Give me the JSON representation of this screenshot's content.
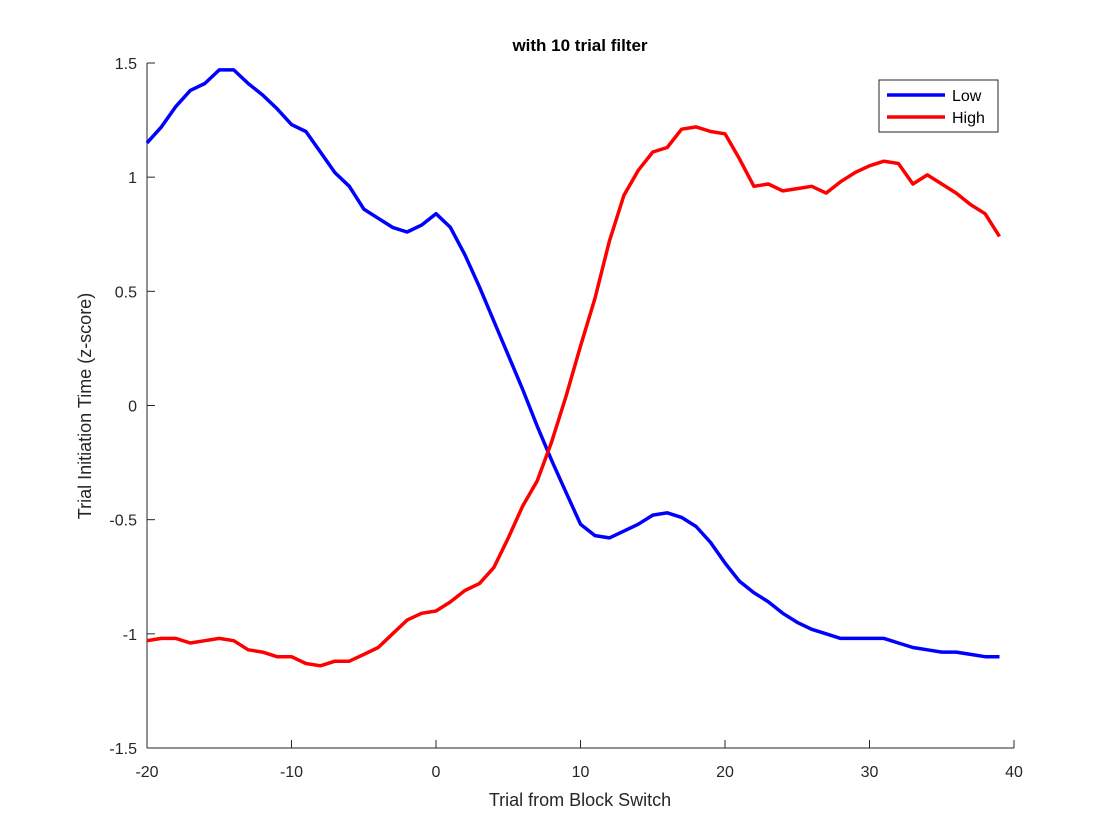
{
  "chart_data": {
    "type": "line",
    "title": "with 10 trial filter",
    "xlabel": "Trial from Block Switch",
    "ylabel": "Trial Initiation Time (z-score)",
    "xlim": [
      -20,
      40
    ],
    "ylim": [
      -1.5,
      1.5
    ],
    "xticks": [
      -20,
      -10,
      0,
      10,
      20,
      30,
      40
    ],
    "xtick_labels": [
      "-20",
      "-10",
      "0",
      "10",
      "20",
      "30",
      "40"
    ],
    "yticks": [
      -1.5,
      -1,
      -0.5,
      0,
      0.5,
      1,
      1.5
    ],
    "ytick_labels": [
      "-1.5",
      "-1",
      "-0.5",
      "0",
      "0.5",
      "1",
      "1.5"
    ],
    "grid": false,
    "legend_position": "top-right",
    "x": [
      -20,
      -19,
      -18,
      -17,
      -16,
      -15,
      -14,
      -13,
      -12,
      -11,
      -10,
      -9,
      -8,
      -7,
      -6,
      -5,
      -4,
      -3,
      -2,
      -1,
      0,
      1,
      2,
      3,
      4,
      5,
      6,
      7,
      8,
      9,
      10,
      11,
      12,
      13,
      14,
      15,
      16,
      17,
      18,
      19,
      20,
      21,
      22,
      23,
      24,
      25,
      26,
      27,
      28,
      29,
      30,
      31,
      32,
      33,
      34,
      35,
      36,
      37,
      38,
      39
    ],
    "series": [
      {
        "name": "Low",
        "color": "#0000ff",
        "values": [
          1.15,
          1.22,
          1.31,
          1.38,
          1.41,
          1.47,
          1.47,
          1.41,
          1.36,
          1.3,
          1.23,
          1.2,
          1.11,
          1.02,
          0.96,
          0.86,
          0.82,
          0.78,
          0.76,
          0.79,
          0.84,
          0.78,
          0.66,
          0.52,
          0.37,
          0.22,
          0.07,
          -0.09,
          -0.24,
          -0.38,
          -0.52,
          -0.57,
          -0.58,
          -0.55,
          -0.52,
          -0.48,
          -0.47,
          -0.49,
          -0.53,
          -0.6,
          -0.69,
          -0.77,
          -0.82,
          -0.86,
          -0.91,
          -0.95,
          -0.98,
          -1.0,
          -1.02,
          -1.02,
          -1.02,
          -1.02,
          -1.04,
          -1.06,
          -1.07,
          -1.08,
          -1.08,
          -1.09,
          -1.1,
          -1.1
        ]
      },
      {
        "name": "High",
        "color": "#ff0000",
        "values": [
          -1.03,
          -1.02,
          -1.02,
          -1.04,
          -1.03,
          -1.02,
          -1.03,
          -1.07,
          -1.08,
          -1.1,
          -1.1,
          -1.13,
          -1.14,
          -1.12,
          -1.12,
          -1.09,
          -1.06,
          -1.0,
          -0.94,
          -0.91,
          -0.9,
          -0.86,
          -0.81,
          -0.78,
          -0.71,
          -0.58,
          -0.44,
          -0.33,
          -0.16,
          0.04,
          0.26,
          0.47,
          0.72,
          0.92,
          1.03,
          1.11,
          1.13,
          1.21,
          1.22,
          1.2,
          1.19,
          1.08,
          0.96,
          0.97,
          0.94,
          0.95,
          0.96,
          0.93,
          0.98,
          1.02,
          1.05,
          1.07,
          1.06,
          0.97,
          1.01,
          0.97,
          0.93,
          0.88,
          0.84,
          0.74
        ]
      }
    ]
  }
}
